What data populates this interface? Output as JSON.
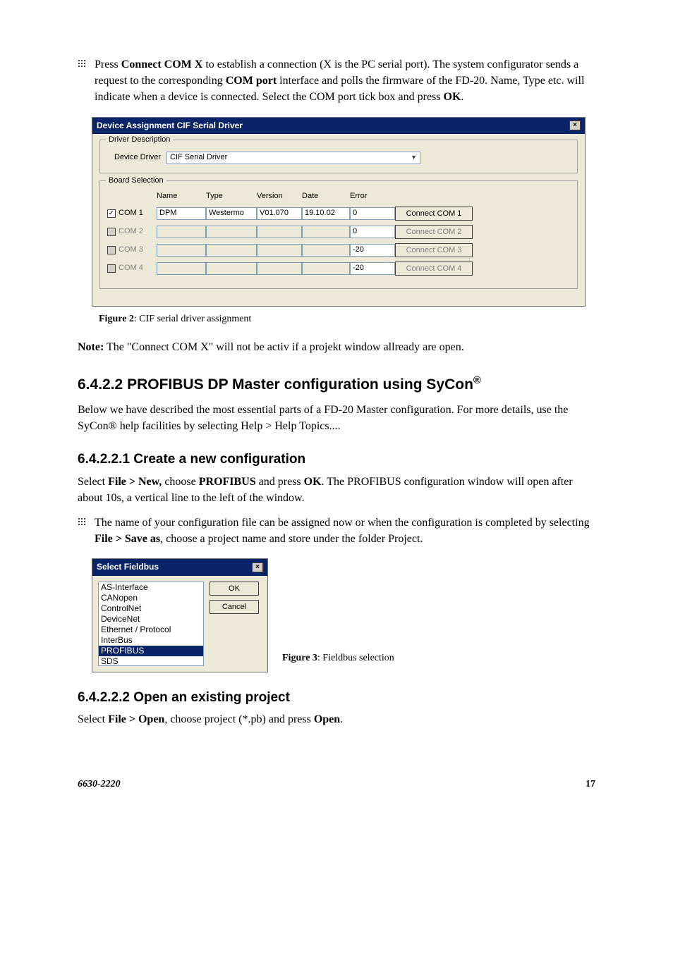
{
  "intro": {
    "p1_a": "Press ",
    "p1_b": "Connect COM X",
    "p1_c": " to establish a connection (X is the PC serial port). The system configurator sends a request to the corresponding ",
    "p1_d": "COM port",
    "p1_e": " interface and polls the firmware of the FD-20. Name, Type etc. will indicate when a device is connected. Select the COM port tick box and press ",
    "p1_f": "OK",
    "p1_g": "."
  },
  "win1": {
    "title": "Device Assignment CIF Serial Driver",
    "group1_legend": "Driver Description",
    "dd_label": "Device Driver",
    "dd_value": "CIF Serial Driver",
    "group2_legend": "Board Selection",
    "headers": {
      "name": "Name",
      "type": "Type",
      "version": "Version",
      "date": "Date",
      "error": "Error"
    },
    "rows": [
      {
        "checked": true,
        "enabled": true,
        "label": "COM 1",
        "name": "DPM",
        "type": "Westermo",
        "version": "V01.070",
        "date": "19.10.02",
        "error": "0",
        "btn": "Connect COM 1"
      },
      {
        "checked": false,
        "enabled": false,
        "label": "COM 2",
        "name": "",
        "type": "",
        "version": "",
        "date": "",
        "error": "0",
        "btn": "Connect COM 2"
      },
      {
        "checked": false,
        "enabled": false,
        "label": "COM 3",
        "name": "",
        "type": "",
        "version": "",
        "date": "",
        "error": "-20",
        "btn": "Connect COM 3"
      },
      {
        "checked": false,
        "enabled": false,
        "label": "COM 4",
        "name": "",
        "type": "",
        "version": "",
        "date": "",
        "error": "-20",
        "btn": "Connect COM 4"
      }
    ],
    "colors": {
      "titlebar_bg": "#0a246a",
      "titlebar_fg": "#ffffff",
      "window_bg": "#ece9d8",
      "field_border": "#7f9db9",
      "btn_bg": "#ece9d8",
      "disabled_fg": "#808080"
    }
  },
  "fig2": {
    "label": "Figure 2",
    "caption": ": CIF serial driver assignment"
  },
  "note": {
    "a": "Note:",
    "b": " The \"Connect COM X\" will not be activ if a projekt window allready are open."
  },
  "h_6422": {
    "num": "6.4.2.2",
    "txt": "  PROFIBUS DP Master configuration using SyCon",
    "reg": "®"
  },
  "para6422": "Below we have described the most essential parts of a FD-20 Master configuration. For more details, use the SyCon® help facilities by selecting Help > Help Topics....",
  "h_64221": {
    "num": "6.4.2.2.1",
    "txt": "  Create a new configuration"
  },
  "para64221": {
    "a": "Select ",
    "b": "File > New,",
    "c": " choose ",
    "d": "PROFIBUS",
    "e": " and press ",
    "f": "OK",
    "g": ". The PROFIBUS configuration window will open after about 10s, a vertical line to the left of the window."
  },
  "bullet2": {
    "a": "The name of your configuration file can be assigned now or when the configuration is completed by selecting ",
    "b": "File > Save as",
    "c": ", choose a project name and store under the folder Project."
  },
  "win2": {
    "title": "Select Fieldbus",
    "items": [
      "AS-Interface",
      "CANopen",
      "ControlNet",
      "DeviceNet",
      "Ethernet / Protocol",
      "InterBus",
      "PROFIBUS",
      "SDS"
    ],
    "selected_index": 6,
    "ok": "OK",
    "cancel": "Cancel"
  },
  "fig3": {
    "label": "Figure 3",
    "caption": ": Fieldbus selection"
  },
  "h_64222": {
    "num": "6.4.2.2.2",
    "txt": "  Open an existing project"
  },
  "para64222": {
    "a": "Select ",
    "b": "File > Open",
    "c": ", choose project (*.pb) and press ",
    "d": "Open",
    "e": "."
  },
  "footer": {
    "doc": "6630-2220",
    "page": "17"
  }
}
